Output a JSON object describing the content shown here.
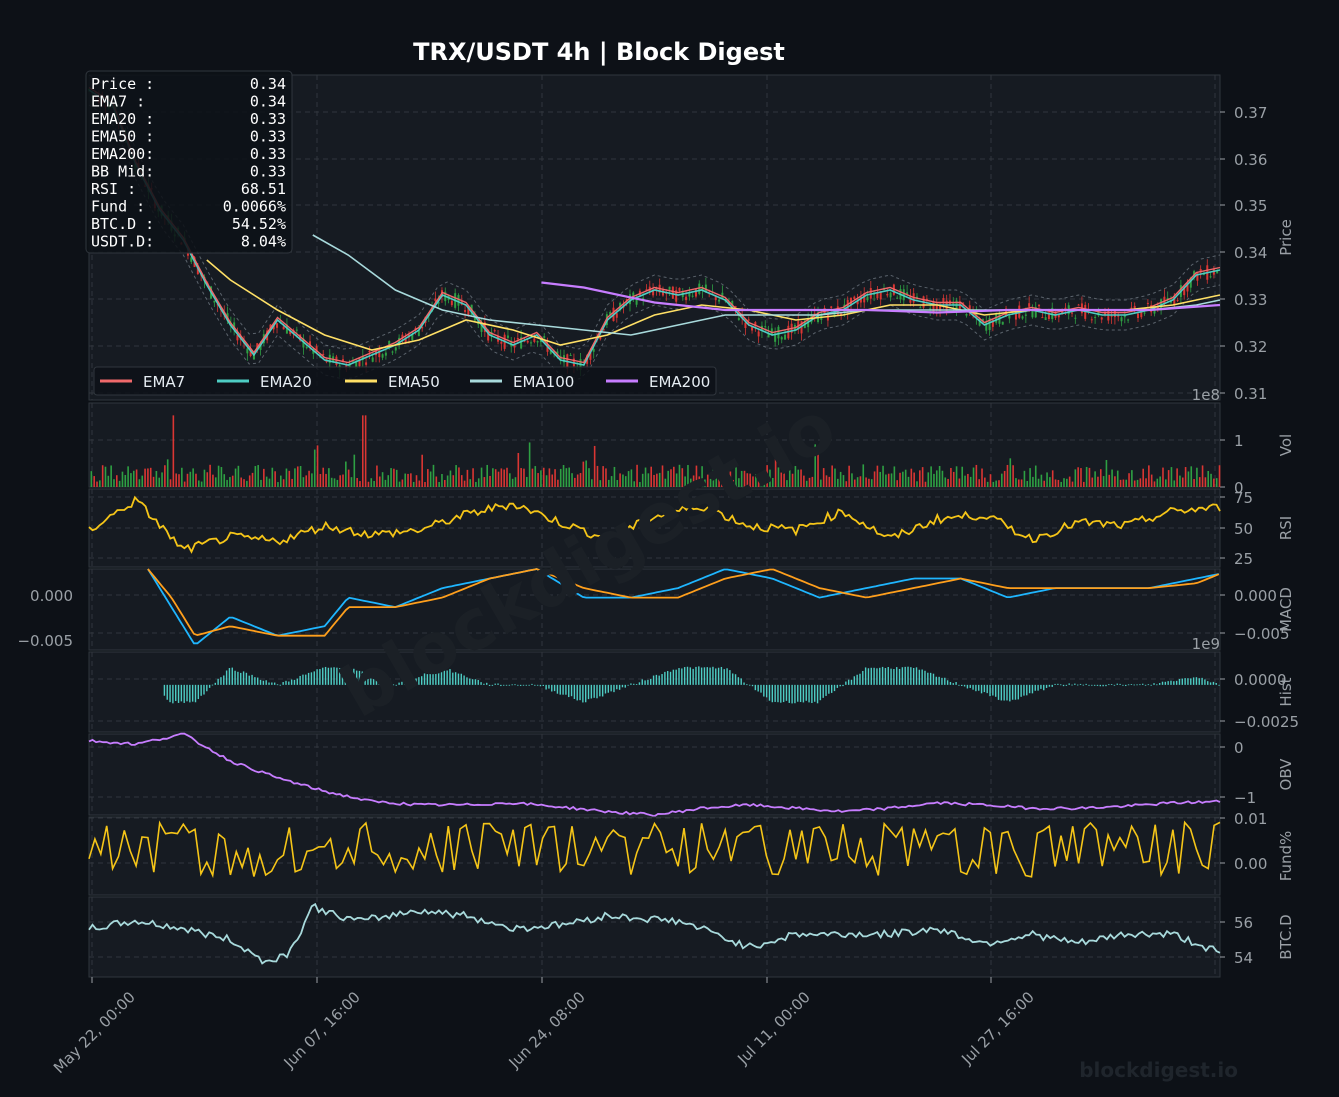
{
  "title": "TRX/USDT  4h  |  Block Digest",
  "watermark": "blockdigest.io",
  "footer_brand": "blockdigest.io",
  "info_box": {
    "rows": [
      {
        "label": "Price :",
        "value": "0.34"
      },
      {
        "label": "EMA7  :",
        "value": "0.34"
      },
      {
        "label": "EMA20 :",
        "value": "0.33"
      },
      {
        "label": "EMA50 :",
        "value": "0.33"
      },
      {
        "label": "EMA200:",
        "value": "0.33"
      },
      {
        "label": "BB Mid:",
        "value": "0.33"
      },
      {
        "label": "RSI   :",
        "value": "68.51"
      },
      {
        "label": "Fund  :",
        "value": "0.0066%"
      },
      {
        "label": "BTC.D :",
        "value": "54.52%"
      },
      {
        "label": "USDT.D:",
        "value": "8.04%"
      }
    ]
  },
  "colors": {
    "background": "#0d1117",
    "panel": "#161b22",
    "grid": "#30363d",
    "text": "#9aa0a6",
    "ema7": "#f0696b",
    "ema20": "#4ecdc4",
    "ema50": "#ffe066",
    "ema100": "#a8dadc",
    "ema200": "#c77dff",
    "up": "#2ea043",
    "down": "#da3633",
    "rsi": "#f5c518",
    "macd": "#1fb6ff",
    "signal": "#ff9f1c",
    "hist": "#4ecdc4",
    "obv": "#c77dff",
    "funding": "#f5c518",
    "btcd": "#a8dadc"
  },
  "chart_data": {
    "type": "line",
    "x_ticks": [
      "May 22, 00:00",
      "Jun 07, 16:00",
      "Jun 24, 08:00",
      "Jul 11, 00:00",
      "Jul 27, 16:00"
    ],
    "legend": [
      "EMA7",
      "EMA20",
      "EMA50",
      "EMA100",
      "EMA200"
    ],
    "panels": [
      {
        "name": "price",
        "ylabel": "Price",
        "ylim": [
          0.31,
          0.375
        ],
        "ticks": [
          "0.31",
          "0.32",
          "0.33",
          "0.34",
          "0.35",
          "0.36",
          "0.37"
        ],
        "series": [
          {
            "name": "Price",
            "x": [
              0,
              10,
              20,
              30,
              40,
              50,
              60,
              70,
              80,
              90,
              100,
              110,
              120,
              130,
              140,
              150,
              160,
              170,
              180,
              190,
              200,
              210,
              220,
              230,
              240,
              250,
              260,
              270,
              280,
              290,
              300,
              310,
              320,
              330,
              340,
              350,
              360,
              370,
              380,
              390,
              400,
              410,
              420,
              430,
              440,
              450,
              460,
              470,
              480
            ],
            "values": [
              0.372,
              0.369,
              0.357,
              0.348,
              0.342,
              0.333,
              0.325,
              0.319,
              0.326,
              0.322,
              0.318,
              0.317,
              0.319,
              0.321,
              0.324,
              0.331,
              0.329,
              0.323,
              0.321,
              0.323,
              0.318,
              0.317,
              0.326,
              0.33,
              0.332,
              0.331,
              0.332,
              0.33,
              0.325,
              0.323,
              0.324,
              0.327,
              0.328,
              0.331,
              0.332,
              0.33,
              0.329,
              0.329,
              0.325,
              0.327,
              0.328,
              0.327,
              0.328,
              0.327,
              0.327,
              0.328,
              0.33,
              0.335,
              0.336
            ]
          },
          {
            "name": "EMA50",
            "x": [
              50,
              60,
              80,
              100,
              120,
              140,
              160,
              180,
              200,
              220,
              240,
              260,
              280,
              300,
              320,
              340,
              360,
              380,
              400,
              420,
              440,
              460,
              480
            ],
            "values": [
              0.338,
              0.334,
              0.328,
              0.323,
              0.32,
              0.322,
              0.326,
              0.324,
              0.321,
              0.323,
              0.327,
              0.329,
              0.328,
              0.326,
              0.327,
              0.329,
              0.329,
              0.327,
              0.328,
              0.328,
              0.328,
              0.329,
              0.331
            ]
          },
          {
            "name": "EMA100",
            "x": [
              95,
              110,
              130,
              150,
              170,
              190,
              210,
              230,
              250,
              270,
              290,
              310,
              330,
              350,
              370,
              390,
              410,
              430,
              450,
              470,
              480
            ],
            "values": [
              0.343,
              0.339,
              0.332,
              0.328,
              0.326,
              0.325,
              0.324,
              0.323,
              0.325,
              0.327,
              0.327,
              0.327,
              0.328,
              0.328,
              0.328,
              0.328,
              0.328,
              0.328,
              0.328,
              0.329,
              0.33
            ]
          },
          {
            "name": "EMA200",
            "x": [
              192,
              210,
              240,
              270,
              300,
              330,
              360,
              390,
              420,
              450,
              480
            ],
            "values": [
              0.3335,
              0.3325,
              0.3295,
              0.328,
              0.328,
              0.328,
              0.3275,
              0.328,
              0.328,
              0.328,
              0.329
            ]
          }
        ]
      },
      {
        "name": "volume",
        "ylabel": "Vol",
        "scale_label": "1e8",
        "ylim": [
          0,
          1.7
        ],
        "ticks": [
          "0",
          "1"
        ]
      },
      {
        "name": "rsi",
        "ylabel": "RSI",
        "ylim": [
          15,
          85
        ],
        "ticks": [
          "25",
          "50",
          "75"
        ],
        "series": [
          {
            "name": "RSI",
            "x": [
              0,
              20,
              40,
              60,
              80,
              100,
              120,
              140,
              160,
              180,
              200,
              220,
              240,
              260,
              280,
              300,
              320,
              340,
              360,
              380,
              400,
              420,
              440,
              460,
              480
            ],
            "values": [
              48,
              75,
              30,
              42,
              38,
              52,
              44,
              48,
              62,
              72,
              55,
              40,
              60,
              70,
              52,
              48,
              65,
              40,
              58,
              62,
              40,
              55,
              52,
              65,
              68.51
            ]
          }
        ]
      },
      {
        "name": "macd",
        "ylabel": "MACD",
        "ylim": [
          -0.0065,
          0.002
        ],
        "ticks": [
          "0.000",
          "−0.005"
        ],
        "left_ticks": [
          "0.000",
          "−0.005"
        ],
        "series": [
          {
            "name": "MACD",
            "x": [
              25,
              35,
              45,
              60,
              80,
              100,
              110,
              130,
              150,
              170,
              190,
              210,
              230,
              250,
              270,
              290,
              310,
              330,
              350,
              370,
              390,
              410,
              430,
              450,
              470,
              480
            ],
            "values": [
              0.002,
              -0.002,
              -0.006,
              -0.003,
              -0.005,
              -0.004,
              -0.001,
              -0.002,
              0.0,
              0.001,
              0.002,
              -0.001,
              -0.001,
              0.0,
              0.002,
              0.001,
              -0.001,
              0.0,
              0.001,
              0.001,
              -0.001,
              0.0,
              0.0,
              0.0,
              0.001,
              0.0015
            ]
          },
          {
            "name": "Signal",
            "x": [
              25,
              35,
              45,
              60,
              80,
              100,
              110,
              130,
              150,
              170,
              190,
              210,
              230,
              250,
              270,
              290,
              310,
              330,
              350,
              370,
              390,
              410,
              430,
              450,
              470,
              480
            ],
            "values": [
              0.002,
              -0.001,
              -0.005,
              -0.004,
              -0.005,
              -0.005,
              -0.002,
              -0.002,
              -0.001,
              0.001,
              0.002,
              0.0,
              -0.001,
              -0.001,
              0.001,
              0.002,
              0.0,
              -0.001,
              0.0,
              0.001,
              0.0,
              0.0,
              0.0,
              0.0,
              0.0005,
              0.0015
            ]
          }
        ]
      },
      {
        "name": "hist",
        "ylabel": "Hist",
        "ylim": [
          -0.0033,
          0.0023
        ],
        "ticks": [
          "0.0000",
          "−0.0025"
        ],
        "scale_label": "1e9"
      },
      {
        "name": "obv",
        "ylabel": "OBV",
        "ylim": [
          -1.1,
          0.1
        ],
        "ticks": [
          "0",
          "−1"
        ],
        "series": [
          {
            "name": "OBV",
            "x": [
              0,
              20,
              40,
              60,
              80,
              100,
              120,
              140,
              160,
              180,
              200,
              220,
              240,
              260,
              280,
              300,
              320,
              340,
              360,
              380,
              400,
              420,
              440,
              460,
              480
            ],
            "values": [
              0.0,
              -0.05,
              0.1,
              -0.3,
              -0.55,
              -0.75,
              -0.9,
              -0.95,
              -0.95,
              -0.92,
              -0.98,
              -1.05,
              -1.1,
              -1.0,
              -0.95,
              -1.0,
              -1.05,
              -1.0,
              -0.92,
              -0.95,
              -1.0,
              -1.0,
              -0.97,
              -0.92,
              -0.9
            ]
          }
        ]
      },
      {
        "name": "funding",
        "ylabel": "Fund%",
        "ylim": [
          -0.007,
          0.011
        ],
        "ticks": [
          "0.01",
          "0.00"
        ]
      },
      {
        "name": "btcd",
        "ylabel": "BTC.D",
        "ylim": [
          53.2,
          57.5
        ],
        "ticks": [
          "56",
          "54"
        ],
        "series": [
          {
            "name": "BTC.D",
            "x": [
              0,
              20,
              40,
              60,
              75,
              85,
              95,
              105,
              115,
              140,
              160,
              180,
              200,
              220,
              250,
              260,
              280,
              300,
              320,
              340,
              360,
              380,
              400,
              420,
              440,
              460,
              480
            ],
            "values": [
              55.8,
              56.2,
              55.8,
              55.2,
              54.0,
              54.5,
              57.0,
              56.5,
              56.2,
              56.8,
              56.5,
              55.8,
              56.0,
              56.5,
              56.2,
              55.8,
              54.8,
              55.5,
              55.5,
              55.5,
              55.8,
              55.0,
              55.5,
              55.0,
              55.5,
              55.5,
              54.5
            ]
          }
        ]
      }
    ]
  }
}
